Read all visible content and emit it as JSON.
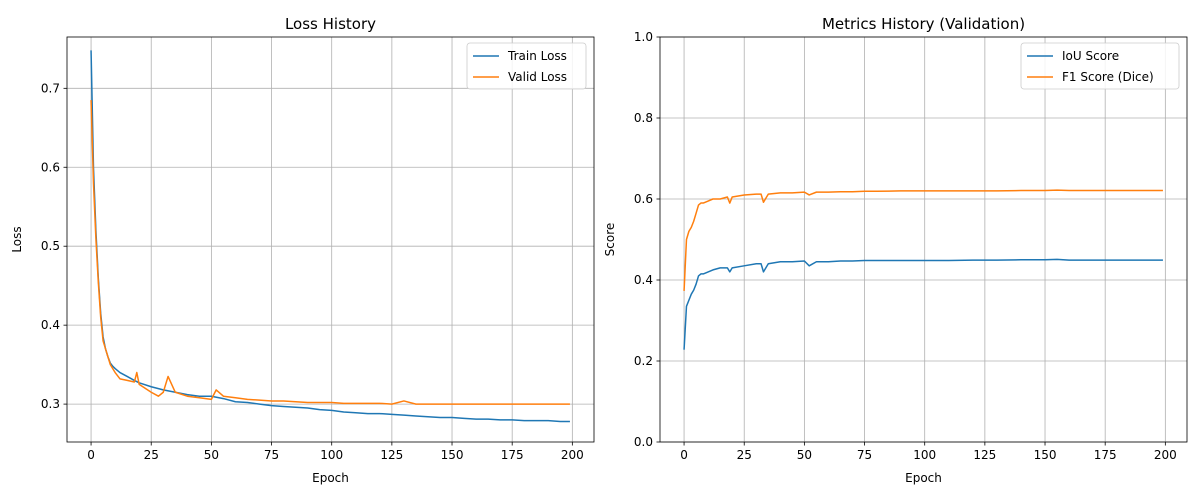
{
  "chart_data": [
    {
      "type": "line",
      "title": "Loss History",
      "xlabel": "Epoch",
      "ylabel": "Loss",
      "xlim": [
        -10,
        209
      ],
      "ylim": [
        0.252,
        0.765
      ],
      "xticks": [
        0,
        25,
        50,
        75,
        100,
        125,
        150,
        175,
        200
      ],
      "yticks": [
        0.3,
        0.4,
        0.5,
        0.6,
        0.7
      ],
      "ytick_labels": [
        "0.3",
        "0.4",
        "0.5",
        "0.6",
        "0.7"
      ],
      "grid": true,
      "legend_position": "top-right",
      "series": [
        {
          "name": "Train Loss",
          "color": "#1f77b4",
          "x": [
            0,
            1,
            2,
            3,
            4,
            5,
            6,
            7,
            8,
            9,
            10,
            12,
            15,
            18,
            20,
            25,
            30,
            35,
            40,
            45,
            50,
            55,
            60,
            65,
            70,
            75,
            80,
            85,
            90,
            95,
            100,
            105,
            110,
            115,
            120,
            125,
            130,
            135,
            140,
            145,
            150,
            155,
            160,
            165,
            170,
            175,
            180,
            185,
            190,
            195,
            199
          ],
          "y": [
            0.748,
            0.6,
            0.52,
            0.46,
            0.415,
            0.385,
            0.37,
            0.36,
            0.352,
            0.348,
            0.345,
            0.34,
            0.335,
            0.33,
            0.327,
            0.322,
            0.318,
            0.315,
            0.312,
            0.31,
            0.31,
            0.307,
            0.303,
            0.302,
            0.3,
            0.298,
            0.297,
            0.296,
            0.295,
            0.293,
            0.292,
            0.29,
            0.289,
            0.288,
            0.288,
            0.287,
            0.286,
            0.285,
            0.284,
            0.283,
            0.283,
            0.282,
            0.281,
            0.281,
            0.28,
            0.28,
            0.279,
            0.279,
            0.279,
            0.278,
            0.278
          ]
        },
        {
          "name": "Valid Loss",
          "color": "#ff7f0e",
          "x": [
            0,
            1,
            2,
            3,
            4,
            5,
            6,
            7,
            8,
            9,
            10,
            12,
            15,
            18,
            19,
            20,
            25,
            28,
            30,
            32,
            35,
            40,
            45,
            50,
            52,
            55,
            60,
            65,
            70,
            75,
            80,
            85,
            90,
            95,
            100,
            105,
            110,
            115,
            120,
            125,
            130,
            135,
            140,
            145,
            150,
            155,
            160,
            165,
            170,
            175,
            180,
            185,
            190,
            195,
            199
          ],
          "y": [
            0.685,
            0.58,
            0.51,
            0.455,
            0.41,
            0.38,
            0.37,
            0.36,
            0.35,
            0.345,
            0.34,
            0.332,
            0.33,
            0.328,
            0.34,
            0.325,
            0.315,
            0.31,
            0.315,
            0.335,
            0.315,
            0.31,
            0.308,
            0.306,
            0.318,
            0.31,
            0.308,
            0.306,
            0.305,
            0.304,
            0.304,
            0.303,
            0.302,
            0.302,
            0.302,
            0.301,
            0.301,
            0.301,
            0.301,
            0.3,
            0.304,
            0.3,
            0.3,
            0.3,
            0.3,
            0.3,
            0.3,
            0.3,
            0.3,
            0.3,
            0.3,
            0.3,
            0.3,
            0.3,
            0.3
          ]
        }
      ]
    },
    {
      "type": "line",
      "title": "Metrics History (Validation)",
      "xlabel": "Epoch",
      "ylabel": "Score",
      "xlim": [
        -10,
        209
      ],
      "ylim": [
        0,
        1
      ],
      "xticks": [
        0,
        25,
        50,
        75,
        100,
        125,
        150,
        175,
        200
      ],
      "yticks": [
        0,
        0.2,
        0.4,
        0.6,
        0.8,
        1.0
      ],
      "ytick_labels": [
        "0.0",
        "0.2",
        "0.4",
        "0.6",
        "0.8",
        "1.0"
      ],
      "grid": true,
      "legend_position": "top-right",
      "series": [
        {
          "name": "IoU Score",
          "color": "#1f77b4",
          "x": [
            0,
            1,
            2,
            3,
            4,
            5,
            6,
            7,
            8,
            10,
            12,
            15,
            18,
            19,
            20,
            25,
            30,
            32,
            33,
            35,
            40,
            45,
            50,
            52,
            55,
            60,
            65,
            70,
            75,
            80,
            90,
            100,
            105,
            110,
            120,
            130,
            140,
            150,
            155,
            160,
            170,
            180,
            190,
            199
          ],
          "y": [
            0.228,
            0.335,
            0.35,
            0.365,
            0.375,
            0.39,
            0.41,
            0.415,
            0.415,
            0.42,
            0.425,
            0.43,
            0.43,
            0.42,
            0.43,
            0.435,
            0.44,
            0.44,
            0.42,
            0.44,
            0.445,
            0.445,
            0.447,
            0.435,
            0.445,
            0.445,
            0.447,
            0.447,
            0.448,
            0.448,
            0.448,
            0.448,
            0.448,
            0.448,
            0.449,
            0.449,
            0.45,
            0.45,
            0.451,
            0.449,
            0.449,
            0.449,
            0.449,
            0.449
          ]
        },
        {
          "name": "F1 Score (Dice)",
          "color": "#ff7f0e",
          "x": [
            0,
            1,
            2,
            3,
            4,
            5,
            6,
            7,
            8,
            10,
            12,
            15,
            18,
            19,
            20,
            25,
            30,
            32,
            33,
            35,
            40,
            45,
            50,
            52,
            55,
            60,
            65,
            70,
            75,
            80,
            90,
            100,
            105,
            110,
            120,
            130,
            140,
            150,
            155,
            160,
            170,
            180,
            190,
            199
          ],
          "y": [
            0.373,
            0.5,
            0.52,
            0.53,
            0.545,
            0.565,
            0.585,
            0.59,
            0.59,
            0.595,
            0.6,
            0.6,
            0.605,
            0.59,
            0.605,
            0.61,
            0.612,
            0.612,
            0.592,
            0.612,
            0.615,
            0.615,
            0.617,
            0.61,
            0.617,
            0.617,
            0.618,
            0.618,
            0.619,
            0.619,
            0.62,
            0.62,
            0.62,
            0.62,
            0.62,
            0.62,
            0.621,
            0.621,
            0.622,
            0.621,
            0.621,
            0.621,
            0.621,
            0.621
          ]
        }
      ]
    }
  ]
}
